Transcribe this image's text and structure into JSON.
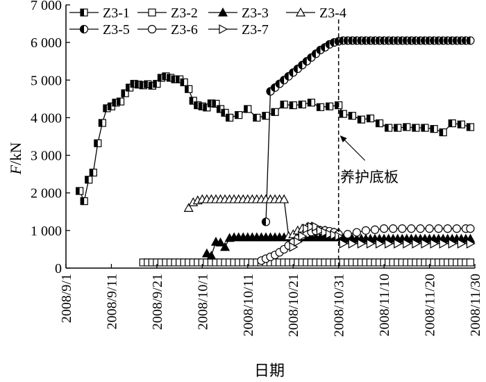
{
  "chart_data": {
    "type": "line",
    "ylabel_italic": "F",
    "ylabel_unit": "/kN",
    "xlabel": "日期",
    "ylim": [
      0,
      7000
    ],
    "xlim": [
      "2008/9/1",
      "2008/11/30"
    ],
    "yticks": [
      0,
      1000,
      2000,
      3000,
      4000,
      5000,
      6000,
      7000
    ],
    "ytick_labels": [
      "0",
      "1 000",
      "2 000",
      "3 000",
      "4 000",
      "5 000",
      "6 000",
      "7 000"
    ],
    "xticks": [
      "2008/9/1",
      "2008/9/11",
      "2008/9/21",
      "2008/10/1",
      "2008/10/11",
      "2008/10/21",
      "2008/10/31",
      "2008/11/10",
      "2008/11/20",
      "2008/11/30"
    ],
    "grid": false,
    "legend_placement": "top-left",
    "annotation": {
      "text": "养护底板",
      "points_to": "2008/10/31"
    },
    "vline": {
      "x": "2008/10/31",
      "style": "dashed"
    },
    "series": [
      {
        "name": "Z3-1",
        "marker": "square-half",
        "x": [
          "2008/9/4",
          "2008/9/5",
          "2008/9/6",
          "2008/9/7",
          "2008/9/8",
          "2008/9/9",
          "2008/9/10",
          "2008/9/11",
          "2008/9/12",
          "2008/9/13",
          "2008/9/14",
          "2008/9/15",
          "2008/9/16",
          "2008/9/17",
          "2008/9/18",
          "2008/9/19",
          "2008/9/20",
          "2008/9/21",
          "2008/9/22",
          "2008/9/23",
          "2008/9/24",
          "2008/9/25",
          "2008/9/26",
          "2008/9/27",
          "2008/9/28",
          "2008/9/29",
          "2008/9/30",
          "2008/10/1",
          "2008/10/2",
          "2008/10/3",
          "2008/10/4",
          "2008/10/5",
          "2008/10/6",
          "2008/10/7",
          "2008/10/9",
          "2008/10/11",
          "2008/10/13",
          "2008/10/15",
          "2008/10/17",
          "2008/10/19",
          "2008/10/21",
          "2008/10/23",
          "2008/10/25",
          "2008/10/27",
          "2008/10/29",
          "2008/10/31",
          "2008/11/1",
          "2008/11/3",
          "2008/11/5",
          "2008/11/7",
          "2008/11/9",
          "2008/11/11",
          "2008/11/13",
          "2008/11/15",
          "2008/11/17",
          "2008/11/19",
          "2008/11/21",
          "2008/11/23",
          "2008/11/25",
          "2008/11/27",
          "2008/11/29"
        ],
        "values": [
          2050,
          1780,
          2350,
          2540,
          3320,
          3860,
          4250,
          4300,
          4400,
          4430,
          4650,
          4800,
          4900,
          4880,
          4860,
          4890,
          4850,
          4900,
          5060,
          5100,
          5060,
          5020,
          5020,
          4940,
          4760,
          4450,
          4330,
          4300,
          4270,
          4380,
          4370,
          4230,
          4130,
          4000,
          4070,
          4230,
          4000,
          4050,
          4150,
          4350,
          4330,
          4350,
          4400,
          4280,
          4300,
          4330,
          4100,
          4050,
          3950,
          3980,
          3850,
          3730,
          3730,
          3750,
          3730,
          3730,
          3700,
          3610,
          3850,
          3820,
          3750
        ]
      },
      {
        "name": "Z3-2",
        "marker": "square-open",
        "x_start": "2008/9/18",
        "x_end": "2008/11/29",
        "x_step_days": 1,
        "value": 150
      },
      {
        "name": "Z3-3",
        "marker": "triangle-filled",
        "x": [
          "2008/10/2",
          "2008/10/3",
          "2008/10/4",
          "2008/10/5",
          "2008/10/6",
          "2008/10/7",
          "2008/10/8",
          "2008/10/9",
          "2008/10/10",
          "2008/10/11",
          "2008/10/12",
          "2008/10/13",
          "2008/10/14",
          "2008/10/15",
          "2008/10/16",
          "2008/10/17",
          "2008/10/18",
          "2008/10/19",
          "2008/10/20",
          "2008/10/21",
          "2008/10/22",
          "2008/10/23",
          "2008/10/24",
          "2008/10/25",
          "2008/10/26",
          "2008/10/27",
          "2008/10/28",
          "2008/10/29",
          "2008/10/30",
          "2008/10/31",
          "2008/11/1",
          "2008/11/2",
          "2008/11/3",
          "2008/11/4",
          "2008/11/5",
          "2008/11/6",
          "2008/11/7",
          "2008/11/8",
          "2008/11/9",
          "2008/11/10",
          "2008/11/11",
          "2008/11/12",
          "2008/11/13",
          "2008/11/14",
          "2008/11/15",
          "2008/11/16",
          "2008/11/17",
          "2008/11/18",
          "2008/11/19",
          "2008/11/20",
          "2008/11/21",
          "2008/11/22",
          "2008/11/23",
          "2008/11/24",
          "2008/11/25",
          "2008/11/26",
          "2008/11/27",
          "2008/11/28",
          "2008/11/29"
        ],
        "values": [
          390,
          330,
          700,
          680,
          560,
          800,
          820,
          820,
          820,
          820,
          820,
          820,
          820,
          820,
          820,
          820,
          820,
          820,
          820,
          820,
          820,
          820,
          820,
          820,
          820,
          820,
          820,
          820,
          820,
          820,
          780,
          780,
          780,
          780,
          780,
          780,
          780,
          780,
          780,
          780,
          780,
          780,
          780,
          780,
          780,
          780,
          780,
          780,
          780,
          780,
          780,
          780,
          780,
          780,
          780,
          780,
          780,
          780,
          780
        ]
      },
      {
        "name": "Z3-4",
        "marker": "triangle-open",
        "x": [
          "2008/9/28",
          "2008/9/29",
          "2008/9/30",
          "2008/10/1",
          "2008/10/2",
          "2008/10/3",
          "2008/10/4",
          "2008/10/5",
          "2008/10/6",
          "2008/10/7",
          "2008/10/8",
          "2008/10/9",
          "2008/10/10",
          "2008/10/11",
          "2008/10/12",
          "2008/10/13",
          "2008/10/14",
          "2008/10/15",
          "2008/10/16",
          "2008/10/17",
          "2008/10/18",
          "2008/10/19",
          "2008/10/20",
          "2008/10/21",
          "2008/10/22",
          "2008/10/23",
          "2008/10/24",
          "2008/10/25",
          "2008/10/26",
          "2008/10/27",
          "2008/10/28",
          "2008/10/29",
          "2008/10/30",
          "2008/10/31"
        ],
        "values": [
          1600,
          1750,
          1800,
          1830,
          1830,
          1830,
          1830,
          1830,
          1830,
          1830,
          1830,
          1830,
          1830,
          1830,
          1830,
          1830,
          1830,
          1830,
          1830,
          1830,
          1830,
          1830,
          850,
          900,
          1000,
          1050,
          1080,
          1100,
          1050,
          1000,
          1000,
          950,
          950,
          950
        ]
      },
      {
        "name": "Z3-5",
        "marker": "circle-half",
        "x": [
          "2008/10/15",
          "2008/10/16",
          "2008/10/17",
          "2008/10/18",
          "2008/10/19",
          "2008/10/20",
          "2008/10/21",
          "2008/10/22",
          "2008/10/23",
          "2008/10/24",
          "2008/10/25",
          "2008/10/26",
          "2008/10/27",
          "2008/10/28",
          "2008/10/29",
          "2008/10/30",
          "2008/10/31",
          "2008/11/1",
          "2008/11/2",
          "2008/11/3",
          "2008/11/4",
          "2008/11/5",
          "2008/11/6",
          "2008/11/7",
          "2008/11/8",
          "2008/11/9",
          "2008/11/10",
          "2008/11/11",
          "2008/11/12",
          "2008/11/13",
          "2008/11/14",
          "2008/11/15",
          "2008/11/16",
          "2008/11/17",
          "2008/11/18",
          "2008/11/19",
          "2008/11/20",
          "2008/11/21",
          "2008/11/22",
          "2008/11/23",
          "2008/11/24",
          "2008/11/25",
          "2008/11/26",
          "2008/11/27",
          "2008/11/28",
          "2008/11/29"
        ],
        "values": [
          1230,
          4700,
          4800,
          4900,
          5000,
          5100,
          5200,
          5300,
          5400,
          5500,
          5600,
          5700,
          5800,
          5870,
          5950,
          6000,
          6030,
          6050,
          6050,
          6050,
          6050,
          6050,
          6050,
          6050,
          6050,
          6050,
          6050,
          6050,
          6050,
          6050,
          6050,
          6050,
          6050,
          6050,
          6050,
          6050,
          6050,
          6050,
          6050,
          6050,
          6050,
          6050,
          6050,
          6050,
          6050,
          6050
        ]
      },
      {
        "name": "Z3-6",
        "marker": "circle-open",
        "x": [
          "2008/10/14",
          "2008/10/15",
          "2008/10/16",
          "2008/10/17",
          "2008/10/18",
          "2008/10/19",
          "2008/10/20",
          "2008/10/21",
          "2008/10/22",
          "2008/10/23",
          "2008/10/24",
          "2008/10/25",
          "2008/10/26",
          "2008/10/27",
          "2008/10/28",
          "2008/10/29",
          "2008/10/30",
          "2008/10/31",
          "2008/11/2",
          "2008/11/4",
          "2008/11/6",
          "2008/11/8",
          "2008/11/10",
          "2008/11/12",
          "2008/11/14",
          "2008/11/16",
          "2008/11/18",
          "2008/11/20",
          "2008/11/22",
          "2008/11/24",
          "2008/11/26",
          "2008/11/28",
          "2008/11/29"
        ],
        "values": [
          200,
          250,
          300,
          350,
          420,
          500,
          600,
          680,
          780,
          860,
          920,
          960,
          990,
          1000,
          1000,
          980,
          950,
          900,
          900,
          950,
          1000,
          1020,
          1050,
          1050,
          1050,
          1050,
          1050,
          1050,
          1050,
          1050,
          1050,
          1050,
          1050
        ]
      },
      {
        "name": "Z3-7",
        "marker": "triangle-right-open",
        "x": [
          "2008/10/21",
          "2008/10/22",
          "2008/10/23",
          "2008/10/24",
          "2008/10/25",
          "2008/10/26",
          "2008/10/27",
          "2008/10/28",
          "2008/10/29",
          "2008/10/30",
          "2008/10/31",
          "2008/11/1",
          "2008/11/3",
          "2008/11/5",
          "2008/11/7",
          "2008/11/9",
          "2008/11/11",
          "2008/11/13",
          "2008/11/15",
          "2008/11/17",
          "2008/11/19",
          "2008/11/21",
          "2008/11/23",
          "2008/11/25",
          "2008/11/27",
          "2008/11/29"
        ],
        "values": [
          560,
          700,
          850,
          1050,
          1100,
          1100,
          1000,
          950,
          900,
          880,
          850,
          650,
          650,
          650,
          650,
          650,
          650,
          650,
          650,
          650,
          650,
          650,
          650,
          650,
          650,
          650
        ]
      }
    ]
  }
}
